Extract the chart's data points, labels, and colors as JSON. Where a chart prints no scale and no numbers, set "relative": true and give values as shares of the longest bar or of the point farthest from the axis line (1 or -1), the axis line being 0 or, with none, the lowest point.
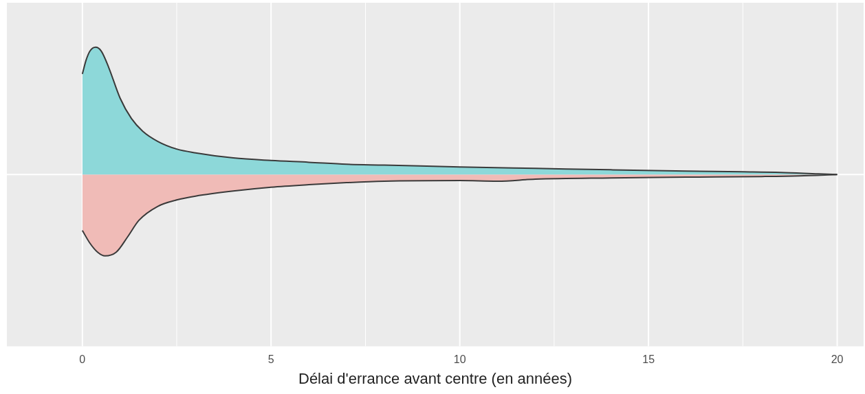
{
  "chart_data": {
    "type": "area",
    "relative": true,
    "xlabel": "Délai d'errance avant centre (en années)",
    "xlim": [
      -2.0,
      20.7
    ],
    "xticks": [
      0,
      5,
      10,
      15,
      20
    ],
    "grid": "x",
    "legend": false,
    "series": [
      {
        "color": "#8dd8d9",
        "x": [
          0,
          0.1,
          0.2,
          0.35,
          0.5,
          0.7,
          1.0,
          1.3,
          1.6,
          2.0,
          2.5,
          3,
          4,
          5,
          6,
          7,
          8,
          10,
          12,
          14,
          16,
          17.5,
          18.5,
          19.5,
          20
        ],
        "values": [
          0.79,
          0.9,
          0.97,
          1.0,
          0.97,
          0.84,
          0.6,
          0.44,
          0.34,
          0.26,
          0.2,
          0.17,
          0.13,
          0.11,
          0.096,
          0.08,
          0.074,
          0.059,
          0.048,
          0.037,
          0.027,
          0.021,
          0.016,
          0.005,
          0
        ]
      },
      {
        "color": "#f0bbb7",
        "x": [
          0,
          0.2,
          0.4,
          0.6,
          0.9,
          1.2,
          1.5,
          2,
          2.5,
          3,
          4,
          5,
          6,
          7,
          8,
          10,
          11,
          12,
          14,
          16,
          18,
          19,
          20
        ],
        "values": [
          -0.44,
          -0.54,
          -0.61,
          -0.64,
          -0.61,
          -0.49,
          -0.36,
          -0.25,
          -0.2,
          -0.17,
          -0.13,
          -0.1,
          -0.08,
          -0.064,
          -0.053,
          -0.048,
          -0.053,
          -0.037,
          -0.027,
          -0.021,
          -0.016,
          -0.011,
          0
        ]
      }
    ]
  }
}
